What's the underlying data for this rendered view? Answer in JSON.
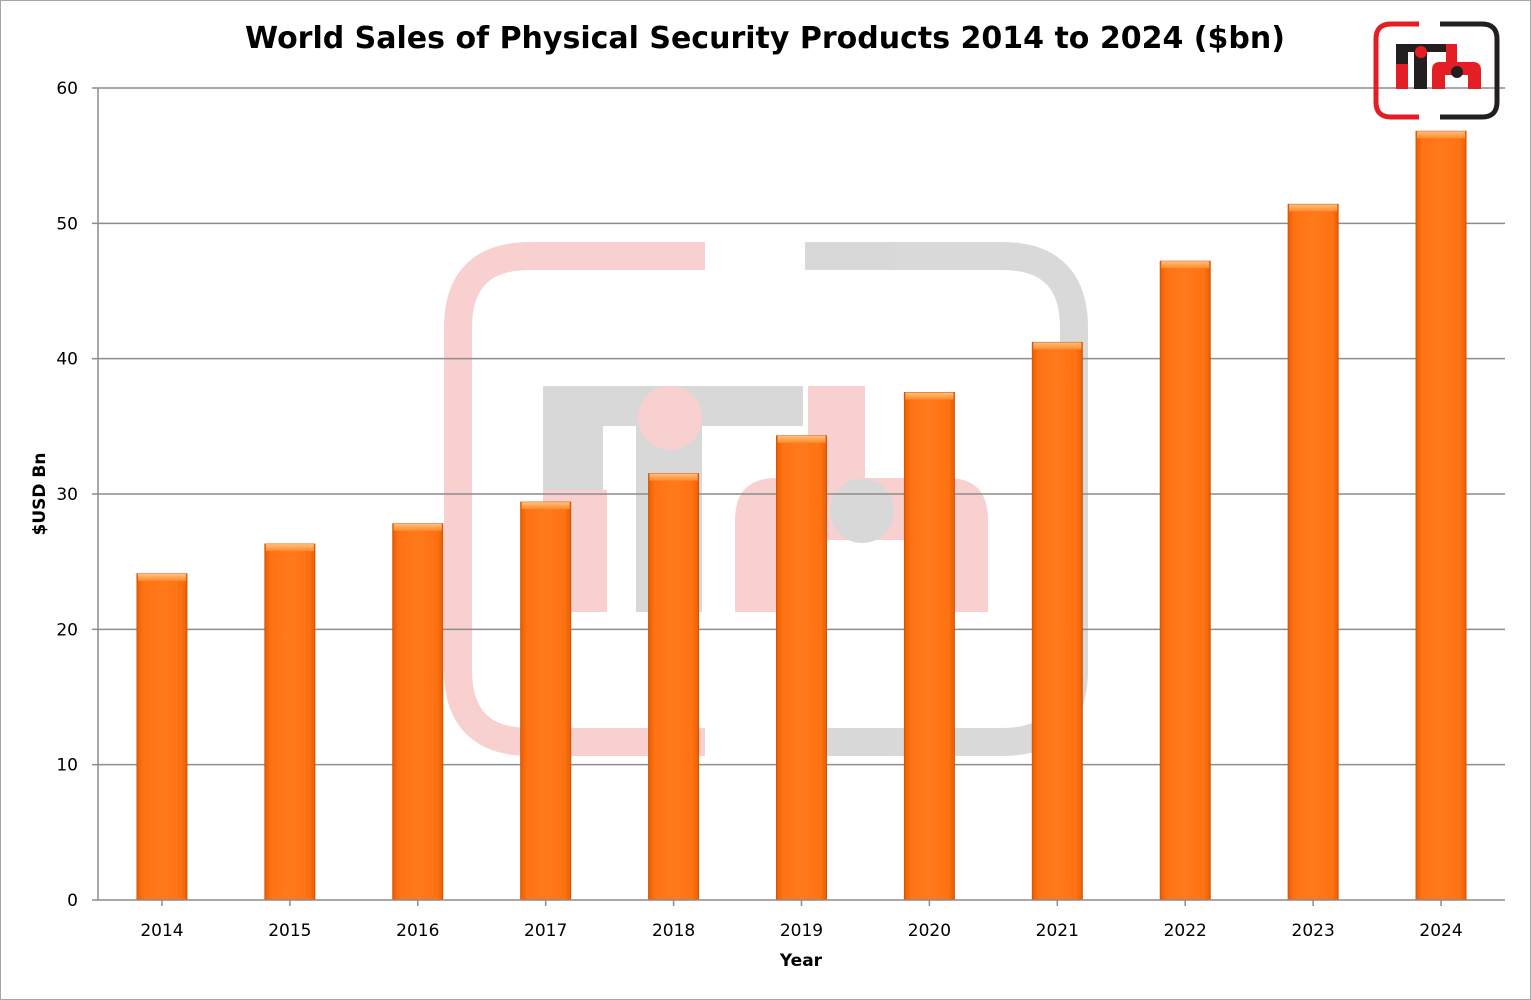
{
  "chart_data": {
    "type": "bar",
    "title": "World Sales of Physical Security Products 2014 to 2024 ($bn)",
    "xlabel": "Year",
    "ylabel": "$USD Bn",
    "categories": [
      "2014",
      "2015",
      "2016",
      "2017",
      "2018",
      "2019",
      "2020",
      "2021",
      "2022",
      "2023",
      "2024"
    ],
    "values": [
      24.1,
      26.3,
      27.8,
      29.4,
      31.5,
      34.3,
      37.5,
      41.2,
      47.2,
      51.4,
      56.8
    ],
    "ylim": [
      0,
      60
    ],
    "yticks": [
      "0",
      "10",
      "20",
      "30",
      "40",
      "50",
      "60"
    ],
    "grid": true,
    "legend": "none",
    "bar_color": "#ff7010",
    "bar_highlight_color": "#ffb266",
    "grid_color": "#8c8c8c"
  },
  "branding": {
    "logo_icon": "ifsec-logo-icon",
    "logo_red": "#e31e24",
    "logo_dark": "#231f20",
    "watermark_pink": "#f7c8c8",
    "watermark_gray": "#cfcfcf"
  }
}
